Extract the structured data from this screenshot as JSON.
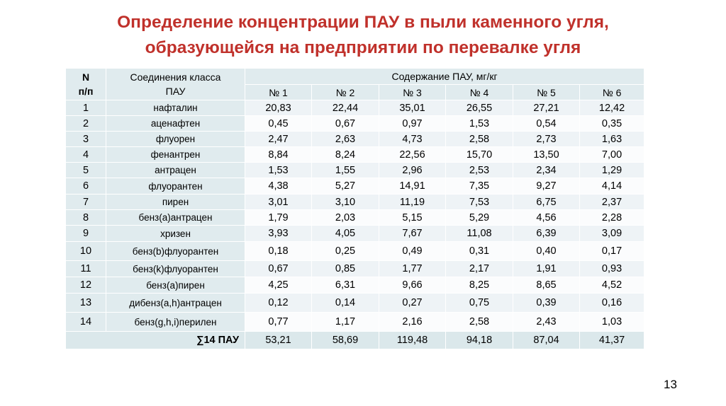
{
  "title": {
    "line1": "Определение концентрации ПАУ в пыли каменного угля,",
    "line2": "образующейся на предприятии по перевалке угля"
  },
  "table": {
    "header": {
      "num_line1": "N",
      "num_line2": "п/п",
      "class_line1": "Соединения класса",
      "class_line2": "ПАУ",
      "content": "Содержание ПАУ, мг/кг",
      "samples": [
        "№ 1",
        "№ 2",
        "№ 3",
        "№ 4",
        "№ 5",
        "№ 6"
      ]
    },
    "rows": [
      {
        "n": "1",
        "name": "нафталин",
        "v": [
          "20,83",
          "22,44",
          "35,01",
          "26,55",
          "27,21",
          "12,42"
        ]
      },
      {
        "n": "2",
        "name": "аценафтен",
        "v": [
          "0,45",
          "0,67",
          "0,97",
          "1,53",
          "0,54",
          "0,35"
        ]
      },
      {
        "n": "3",
        "name": "флуорен",
        "v": [
          "2,47",
          "2,63",
          "4,73",
          "2,58",
          "2,73",
          "1,63"
        ]
      },
      {
        "n": "4",
        "name": "фенантрен",
        "v": [
          "8,84",
          "8,24",
          "22,56",
          "15,70",
          "13,50",
          "7,00"
        ]
      },
      {
        "n": "5",
        "name": "антрацен",
        "v": [
          "1,53",
          "1,55",
          "2,96",
          "2,53",
          "2,34",
          "1,29"
        ]
      },
      {
        "n": "6",
        "name": "флуорантен",
        "v": [
          "4,38",
          "5,27",
          "14,91",
          "7,35",
          "9,27",
          "4,14"
        ]
      },
      {
        "n": "7",
        "name": "пирен",
        "v": [
          "3,01",
          "3,10",
          "11,19",
          "7,53",
          "6,75",
          "2,37"
        ]
      },
      {
        "n": "8",
        "name": "бенз(а)антрацен",
        "v": [
          "1,79",
          "2,03",
          "5,15",
          "5,29",
          "4,56",
          "2,28"
        ]
      },
      {
        "n": "9",
        "name": "хризен",
        "v": [
          "3,93",
          "4,05",
          "7,67",
          "11,08",
          "6,39",
          "3,09"
        ]
      },
      {
        "n": "10",
        "name": "бенз(b)флуорантен",
        "v": [
          "0,18",
          "0,25",
          "0,49",
          "0,31",
          "0,40",
          "0,17"
        ]
      },
      {
        "n": "11",
        "name": "бенз(k)флуорантен",
        "v": [
          "0,67",
          "0,85",
          "1,77",
          "2,17",
          "1,91",
          "0,93"
        ]
      },
      {
        "n": "12",
        "name": "бенз(а)пирен",
        "v": [
          "4,25",
          "6,31",
          "9,66",
          "8,25",
          "8,65",
          "4,52"
        ]
      },
      {
        "n": "13",
        "name": "дибенз(a,h)антрацен",
        "v": [
          "0,12",
          "0,14",
          "0,27",
          "0,75",
          "0,39",
          "0,16"
        ]
      },
      {
        "n": "14",
        "name": "бенз(g,h,i)перилен",
        "v": [
          "0,77",
          "1,17",
          "2,16",
          "2,58",
          "2,43",
          "1,03"
        ]
      }
    ],
    "total": {
      "label": "∑14 ПАУ",
      "v": [
        "53,21",
        "58,69",
        "119,48",
        "94,18",
        "87,04",
        "41,37"
      ]
    }
  },
  "page_number": "13",
  "colors": {
    "title": "#c0312b",
    "header_bg": "#e0ebee",
    "row_odd_bg": "#eef3f6",
    "row_even_bg": "#fbfcfd",
    "total_bg": "#dbe8eb"
  }
}
